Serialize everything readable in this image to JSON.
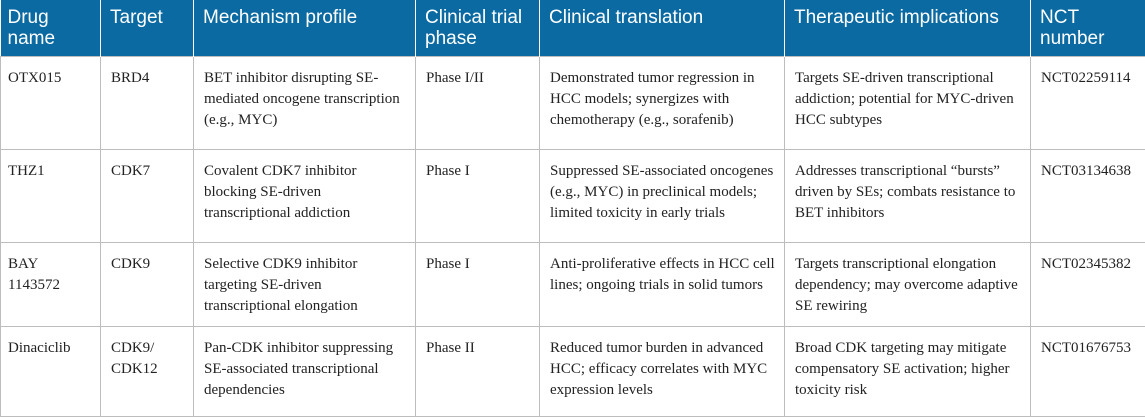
{
  "table": {
    "headers": [
      "Drug name",
      "Target",
      "Mechanism profile",
      "Clinical trial phase",
      "Clinical translation",
      "Therapeutic implications",
      "NCT number"
    ],
    "rows": [
      {
        "drug": "OTX015",
        "target": "BRD4",
        "mechanism": "BET inhibitor disrupting SE-mediated oncogene transcription (e.g., MYC)",
        "phase": "Phase I/II",
        "translation": "Demonstrated tumor regression in HCC models; synergizes with chemotherapy (e.g., sorafenib)",
        "implications": "Targets SE-driven transcriptional addiction; potential for MYC-driven HCC subtypes",
        "nct": "NCT02259114"
      },
      {
        "drug": "THZ1",
        "target": "CDK7",
        "mechanism": "Covalent CDK7 inhibitor blocking SE-driven transcriptional addiction",
        "phase": "Phase I",
        "translation": "Suppressed SE-associated oncogenes (e.g., MYC) in preclinical models; limited toxicity in early trials",
        "implications": "Addresses transcriptional “bursts” driven by SEs; combats resistance to BET inhibitors",
        "nct": "NCT03134638"
      },
      {
        "drug": "BAY 1143572",
        "target": "CDK9",
        "mechanism": "Selective CDK9 inhibitor targeting SE-driven transcriptional elongation",
        "phase": "Phase I",
        "translation": "Anti-proliferative effects in HCC cell lines; ongoing trials in solid tumors",
        "implications": "Targets transcriptional elongation dependency; may overcome adaptive SE rewiring",
        "nct": "NCT02345382"
      },
      {
        "drug": "Dinaciclib",
        "target": "CDK9/ CDK12",
        "mechanism": "Pan-CDK inhibitor suppressing SE-associated transcriptional dependencies",
        "phase": "Phase II",
        "translation": "Reduced tumor burden in advanced HCC; efficacy correlates with MYC expression levels",
        "implications": "Broad CDK targeting may mitigate compensatory SE activation; higher toxicity risk",
        "nct": "NCT01676753"
      }
    ]
  }
}
